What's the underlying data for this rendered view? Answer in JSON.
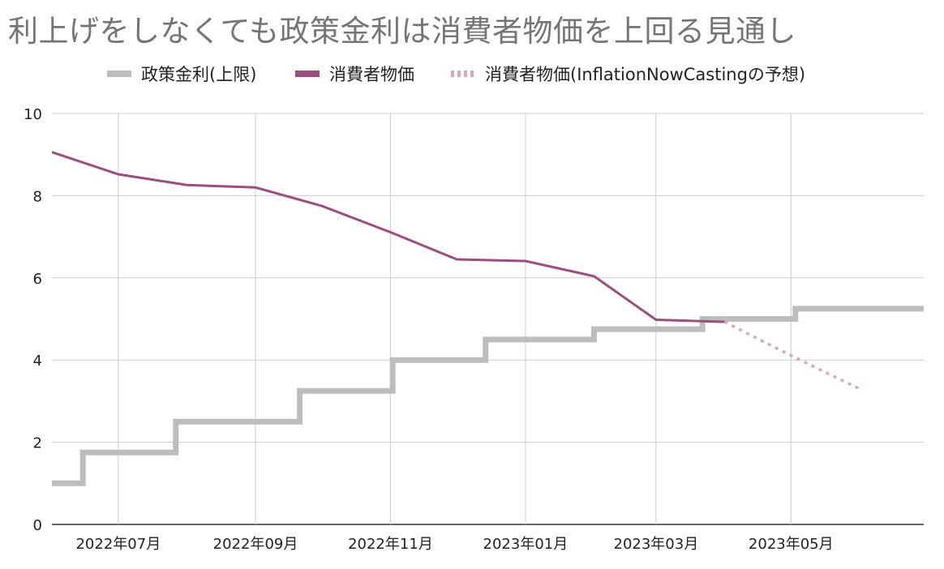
{
  "chart_data": {
    "type": "line",
    "title": "利上げをしなくても政策金利は消費者物価を上回る見通し",
    "xlabel": "",
    "ylabel": "",
    "ylim": [
      0,
      10
    ],
    "yticks": [
      "0",
      "2",
      "4",
      "6",
      "8",
      "10"
    ],
    "xlim": [
      "2022-06-01",
      "2023-06-30"
    ],
    "xticks": [
      {
        "date": "2022-07-01",
        "label": "2022年07月"
      },
      {
        "date": "2022-09-01",
        "label": "2022年09月"
      },
      {
        "date": "2022-11-01",
        "label": "2022年11月"
      },
      {
        "date": "2023-01-01",
        "label": "2023年01月"
      },
      {
        "date": "2023-03-01",
        "label": "2023年03月"
      },
      {
        "date": "2023-05-01",
        "label": "2023年05月"
      }
    ],
    "grid": true,
    "legend_position": "top",
    "series": [
      {
        "name": "政策金利(上限)",
        "style": "step",
        "color": "#bdbdbd",
        "points": [
          {
            "x": "2022-06-01",
            "y": 1.0
          },
          {
            "x": "2022-06-15",
            "y": 1.75
          },
          {
            "x": "2022-07-27",
            "y": 2.5
          },
          {
            "x": "2022-09-21",
            "y": 3.25
          },
          {
            "x": "2022-11-02",
            "y": 4.0
          },
          {
            "x": "2022-12-14",
            "y": 4.5
          },
          {
            "x": "2023-02-01",
            "y": 4.75
          },
          {
            "x": "2023-03-22",
            "y": 5.0
          },
          {
            "x": "2023-05-03",
            "y": 5.25
          },
          {
            "x": "2023-06-30",
            "y": 5.25
          }
        ]
      },
      {
        "name": "消費者物価",
        "style": "solid",
        "color": "#9c4f7e",
        "points": [
          {
            "x": "2022-06-01",
            "y": 9.06
          },
          {
            "x": "2022-07-01",
            "y": 8.52
          },
          {
            "x": "2022-08-01",
            "y": 8.26
          },
          {
            "x": "2022-09-01",
            "y": 8.2
          },
          {
            "x": "2022-10-01",
            "y": 7.75
          },
          {
            "x": "2022-11-01",
            "y": 7.11
          },
          {
            "x": "2022-12-01",
            "y": 6.45
          },
          {
            "x": "2023-01-01",
            "y": 6.41
          },
          {
            "x": "2023-02-01",
            "y": 6.04
          },
          {
            "x": "2023-03-01",
            "y": 4.98
          },
          {
            "x": "2023-04-01",
            "y": 4.93
          }
        ]
      },
      {
        "name": "消費者物価(InflationNowCastingの予想)",
        "style": "dotted",
        "color": "#d9a6c0",
        "points": [
          {
            "x": "2023-04-01",
            "y": 4.93
          },
          {
            "x": "2023-05-01",
            "y": 4.11
          },
          {
            "x": "2023-06-01",
            "y": 3.3
          }
        ]
      }
    ]
  }
}
